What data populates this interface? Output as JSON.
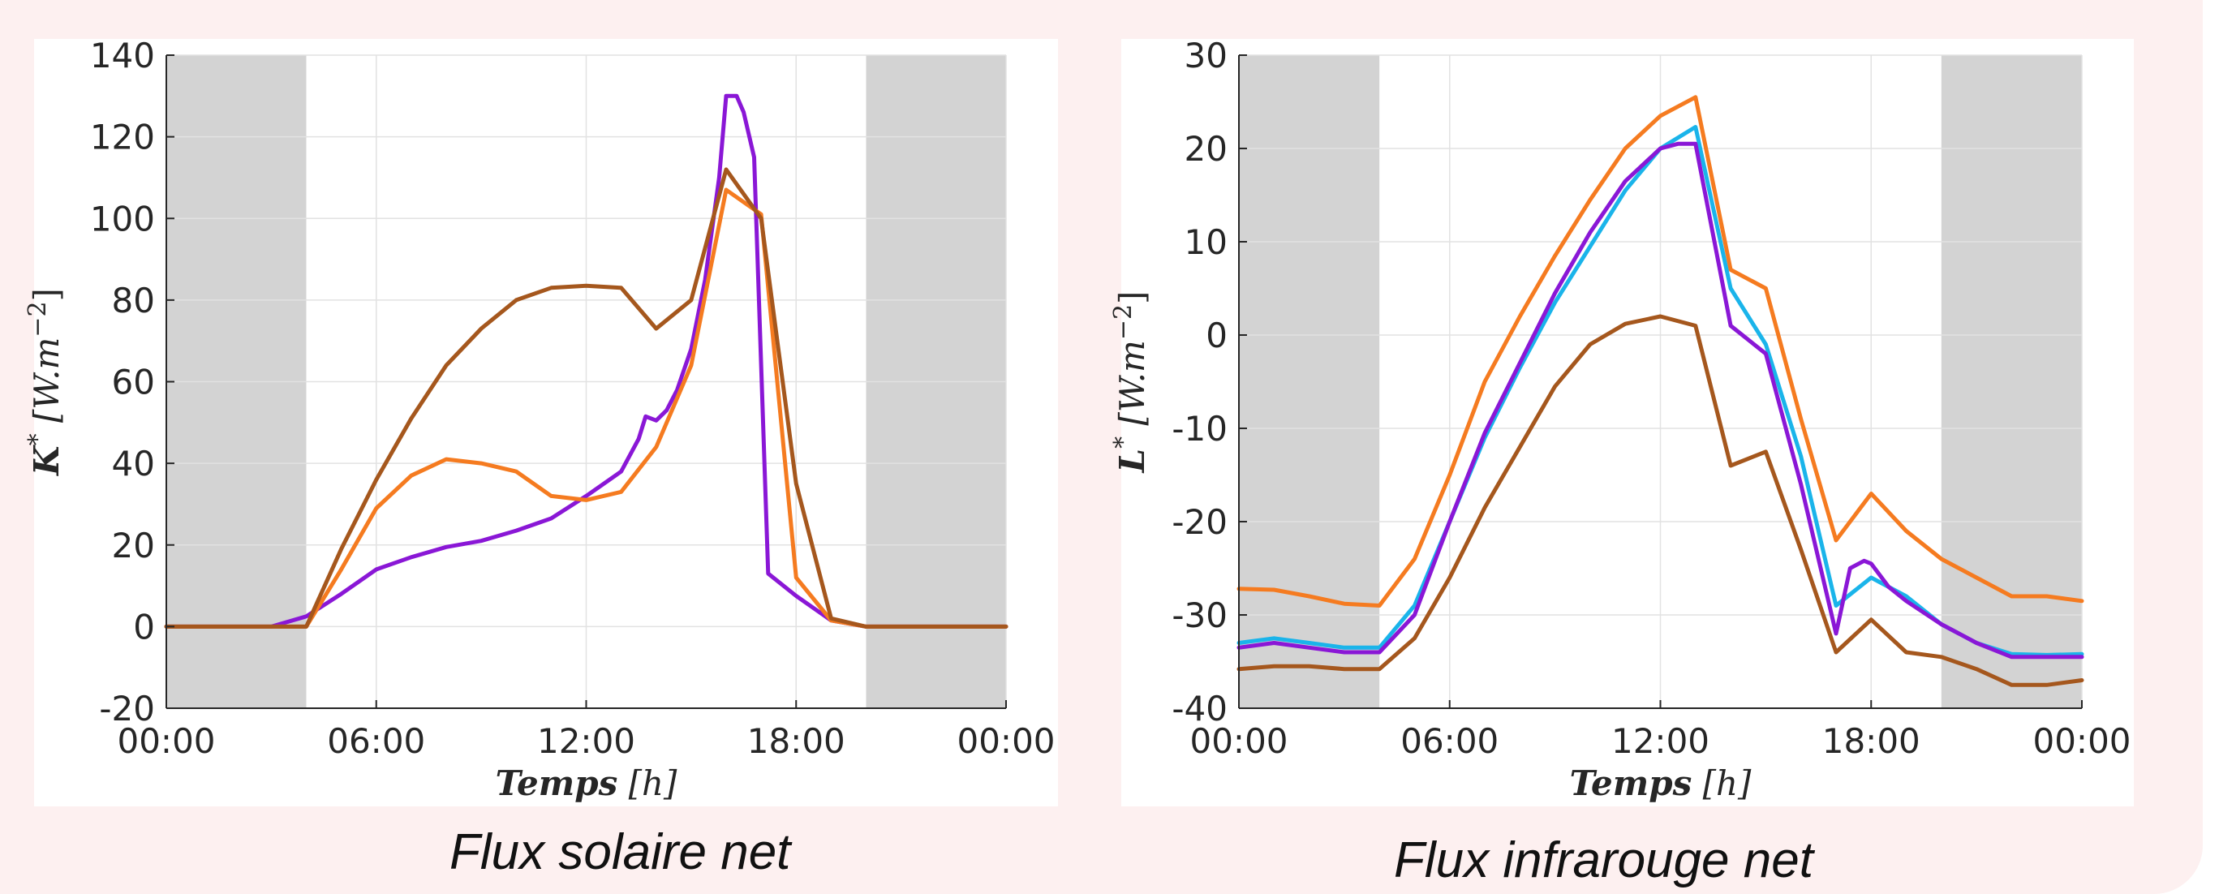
{
  "panels": [
    {
      "caption": "Flux solaire net",
      "chart_data": {
        "type": "line",
        "xlabel": "Temps [h]",
        "ylabel": "K* [W.m^-2]",
        "ylabel_parts": {
          "symbol": "K",
          "sup": "*",
          "unit_open": " [W.m",
          "unit_sup": "−2",
          "unit_close": "]"
        },
        "xlabel_parts": {
          "symbol": "Temps",
          "unit": " [h]"
        },
        "xlim": [
          0,
          24
        ],
        "ylim": [
          -20,
          140
        ],
        "xticks": [
          0,
          6,
          12,
          18,
          24
        ],
        "xtick_labels": [
          "00:00",
          "06:00",
          "12:00",
          "18:00",
          "00:00"
        ],
        "yticks": [
          -20,
          0,
          20,
          40,
          60,
          80,
          100,
          120,
          140
        ],
        "ytick_labels": [
          "-20",
          "0",
          "20",
          "40",
          "60",
          "80",
          "100",
          "120",
          "140"
        ],
        "grid": true,
        "night_bands": [
          [
            0,
            4
          ],
          [
            20,
            24
          ]
        ],
        "series": [
          {
            "color": "#8a17d6",
            "x": [
              0,
              3,
              4,
              5,
              6,
              7,
              8,
              9,
              10,
              11,
              12,
              13,
              13.5,
              13.7,
              14,
              14.3,
              14.6,
              15,
              15.4,
              15.8,
              16,
              16.3,
              16.5,
              16.8,
              17.2,
              18,
              19,
              20,
              24
            ],
            "y": [
              0,
              0,
              2.5,
              8,
              14,
              17,
              19.5,
              21,
              23.5,
              26.5,
              32,
              38,
              46,
              51.5,
              50.5,
              53,
              58,
              68,
              85,
              110,
              130,
              130,
              126,
              115,
              13,
              7.5,
              1.5,
              0,
              0
            ]
          },
          {
            "color": "#f57b20",
            "x": [
              0,
              4,
              5,
              6,
              7,
              8,
              9,
              10,
              11,
              12,
              13,
              14,
              15,
              16,
              17,
              18,
              19,
              20,
              24
            ],
            "y": [
              0,
              0,
              14,
              29,
              37,
              41,
              40,
              38,
              32,
              31,
              33,
              44,
              64,
              107,
              101,
              12,
              1.5,
              0,
              0
            ]
          },
          {
            "color": "#a5571d",
            "x": [
              0,
              4,
              5,
              6,
              7,
              8,
              9,
              10,
              11,
              12,
              13,
              14,
              15,
              16,
              17,
              18,
              19,
              20,
              24
            ],
            "y": [
              0,
              0,
              19,
              36,
              51,
              64,
              73,
              80,
              83,
              83.5,
              83,
              73,
              80,
              112,
              100,
              35,
              2,
              0,
              0
            ]
          }
        ]
      }
    },
    {
      "caption": "Flux infrarouge net",
      "chart_data": {
        "type": "line",
        "xlabel": "Temps [h]",
        "ylabel": "L* [W.m^-2]",
        "ylabel_parts": {
          "symbol": "L",
          "sup": "*",
          "unit_open": " [W.m",
          "unit_sup": "−2",
          "unit_close": "]"
        },
        "xlabel_parts": {
          "symbol": "Temps",
          "unit": " [h]"
        },
        "xlim": [
          0,
          24
        ],
        "ylim": [
          -40,
          30
        ],
        "xticks": [
          0,
          6,
          12,
          18,
          24
        ],
        "xtick_labels": [
          "00:00",
          "06:00",
          "12:00",
          "18:00",
          "00:00"
        ],
        "yticks": [
          -40,
          -30,
          -20,
          -10,
          0,
          10,
          20,
          30
        ],
        "ytick_labels": [
          "-40",
          "-30",
          "-20",
          "-10",
          "0",
          "10",
          "20",
          "30"
        ],
        "grid": true,
        "night_bands": [
          [
            0,
            4
          ],
          [
            20,
            24
          ]
        ],
        "series": [
          {
            "color": "#f57b20",
            "x": [
              0,
              1,
              2,
              3,
              4,
              5,
              6,
              7,
              8,
              9,
              10,
              11,
              12,
              13,
              14,
              15,
              16,
              17,
              18,
              19,
              20,
              21,
              22,
              23,
              24
            ],
            "y": [
              -27.2,
              -27.3,
              -28,
              -28.8,
              -29,
              -24,
              -15,
              -5,
              2,
              8.5,
              14.5,
              20,
              23.5,
              25.5,
              7,
              5,
              -9,
              -22,
              -17,
              -21,
              -24,
              -26,
              -28,
              -28,
              -28.5
            ]
          },
          {
            "color": "#1ab4ea",
            "x": [
              0,
              1,
              2,
              3,
              4,
              5,
              6,
              7,
              8,
              9,
              10,
              11,
              12,
              13,
              14,
              15,
              16,
              17,
              18,
              19,
              20,
              21,
              22,
              23,
              24
            ],
            "y": [
              -33,
              -32.5,
              -33,
              -33.5,
              -33.5,
              -29,
              -20,
              -11,
              -3.5,
              3.5,
              9.5,
              15.5,
              20,
              22.3,
              5,
              -1,
              -13,
              -29,
              -26,
              -28,
              -31,
              -33,
              -34.2,
              -34.3,
              -34.2
            ]
          },
          {
            "color": "#8a17d6",
            "x": [
              0,
              1,
              2,
              3,
              4,
              5,
              6,
              7,
              8,
              9,
              10,
              11,
              12,
              12.5,
              13,
              14,
              15,
              16,
              17,
              17.4,
              17.8,
              18,
              18.5,
              19,
              20,
              21,
              22,
              23,
              24
            ],
            "y": [
              -33.5,
              -33,
              -33.5,
              -34,
              -34,
              -30,
              -20,
              -10.5,
              -3,
              4.5,
              11,
              16.5,
              20,
              20.5,
              20.5,
              1,
              -2,
              -16,
              -32,
              -25,
              -24.2,
              -24.5,
              -27,
              -28.5,
              -31,
              -33,
              -34.5,
              -34.5,
              -34.5
            ]
          },
          {
            "color": "#a5571d",
            "x": [
              0,
              1,
              2,
              3,
              4,
              5,
              6,
              7,
              8,
              9,
              10,
              11,
              12,
              13,
              14,
              15,
              16,
              17,
              18,
              19,
              20,
              21,
              22,
              23,
              24
            ],
            "y": [
              -35.8,
              -35.5,
              -35.5,
              -35.8,
              -35.8,
              -32.5,
              -26,
              -18.5,
              -12,
              -5.5,
              -1,
              1.2,
              2,
              1,
              -14,
              -12.5,
              -23,
              -34,
              -30.5,
              -34,
              -34.5,
              -35.8,
              -37.5,
              -37.5,
              -37
            ]
          }
        ]
      }
    }
  ]
}
